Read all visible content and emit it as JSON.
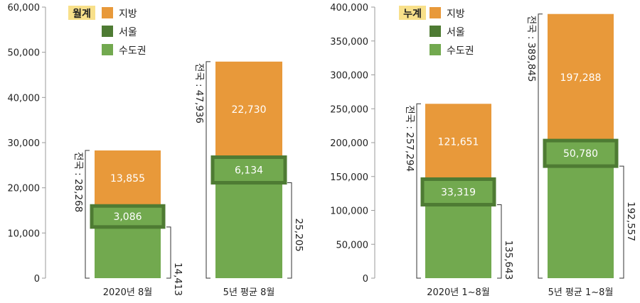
{
  "colors": {
    "regional": "#E8993A",
    "seoul": "#4E7B33",
    "capital": "#72A94F",
    "tag_bg": "#F8E08A",
    "axis": "#9a9a9a"
  },
  "chart_data": [
    {
      "type": "bar",
      "stacked": true,
      "tag": "월계",
      "legend": [
        "지방",
        "서울",
        "수도권"
      ],
      "categories": [
        "2020년 8월",
        "5년 평균 8월"
      ],
      "ylim": [
        0,
        60000
      ],
      "yticks": [
        "0",
        "10,000",
        "20,000",
        "30,000",
        "40,000",
        "50,000",
        "60,000"
      ],
      "series": [
        {
          "name": "수도권",
          "values": [
            14413,
            25205
          ],
          "labels": [
            "14,413",
            "25,205"
          ]
        },
        {
          "name": "지방",
          "values": [
            13855,
            22730
          ],
          "labels": [
            "13,855",
            "22,730"
          ]
        }
      ],
      "seoul": {
        "values": [
          3086,
          6134
        ],
        "labels": [
          "3,086",
          "6,134"
        ]
      },
      "totals": {
        "values": [
          28268,
          47936
        ],
        "labels": [
          "전국 : 28,268",
          "전국 : 47,936"
        ]
      }
    },
    {
      "type": "bar",
      "stacked": true,
      "tag": "누계",
      "legend": [
        "지방",
        "서울",
        "수도권"
      ],
      "categories": [
        "2020년 1~8월",
        "5년 평균 1~8월"
      ],
      "ylim": [
        0,
        400000
      ],
      "yticks": [
        "0",
        "50,000",
        "100,000",
        "150,000",
        "200,000",
        "250,000",
        "300,000",
        "350,000",
        "400,000"
      ],
      "series": [
        {
          "name": "수도권",
          "values": [
            135643,
            192557
          ],
          "labels": [
            "135,643",
            "192,557"
          ]
        },
        {
          "name": "지방",
          "values": [
            121651,
            197288
          ],
          "labels": [
            "121,651",
            "197,288"
          ]
        }
      ],
      "seoul": {
        "values": [
          33319,
          50780
        ],
        "labels": [
          "33,319",
          "50,780"
        ]
      },
      "totals": {
        "values": [
          257294,
          389845
        ],
        "labels": [
          "전국 : 257,294",
          "전국 : 389,845"
        ]
      }
    }
  ]
}
